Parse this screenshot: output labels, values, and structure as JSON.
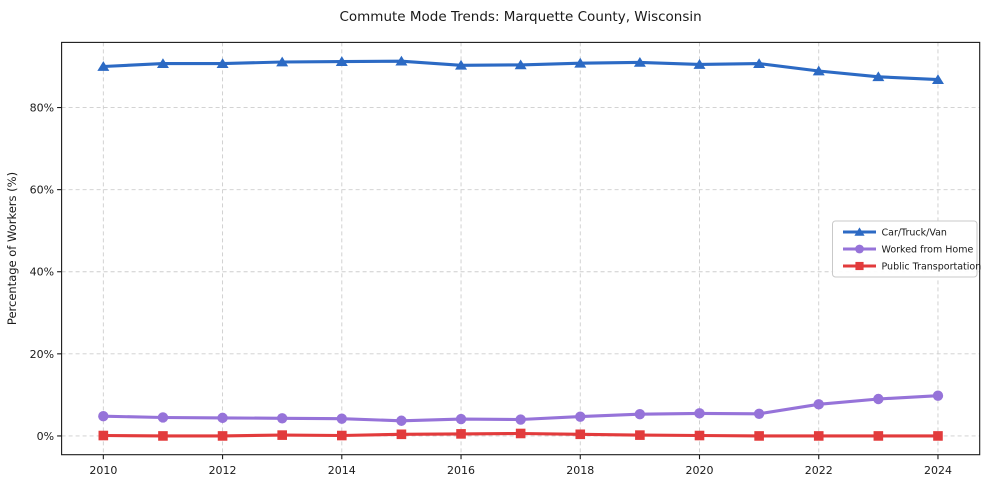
{
  "chart_data": {
    "type": "line",
    "title": "Commute Mode Trends: Marquette County, Wisconsin",
    "xlabel": "",
    "ylabel": "Percentage of Workers (%)",
    "x": [
      2010,
      2011,
      2012,
      2013,
      2014,
      2015,
      2016,
      2017,
      2018,
      2019,
      2020,
      2021,
      2022,
      2023,
      2024
    ],
    "series": [
      {
        "name": "Car/Truck/Van",
        "color": "#2c6ac4",
        "marker": "triangle-up",
        "values": [
          90.0,
          90.7,
          90.7,
          91.1,
          91.2,
          91.3,
          90.3,
          90.4,
          90.8,
          91.0,
          90.5,
          90.7,
          88.9,
          87.5,
          86.8
        ]
      },
      {
        "name": "Worked from Home",
        "color": "#9673d9",
        "marker": "circle",
        "values": [
          4.8,
          4.5,
          4.4,
          4.3,
          4.2,
          3.7,
          4.1,
          4.0,
          4.7,
          5.3,
          5.5,
          5.4,
          7.7,
          9.0,
          9.8
        ]
      },
      {
        "name": "Public Transportation",
        "color": "#e23b3c",
        "marker": "square",
        "values": [
          0.1,
          0.0,
          0.0,
          0.2,
          0.1,
          0.4,
          0.5,
          0.6,
          0.4,
          0.2,
          0.1,
          0.0,
          0.0,
          0.0,
          0.0
        ]
      }
    ],
    "xticks": [
      2010,
      2012,
      2014,
      2016,
      2018,
      2020,
      2022,
      2024
    ],
    "xtick_labels": [
      "2010",
      "2012",
      "2014",
      "2016",
      "2018",
      "2020",
      "2022",
      "2024"
    ],
    "yticks": [
      0,
      20,
      40,
      60,
      80
    ],
    "ytick_labels": [
      "0%",
      "20%",
      "40%",
      "60%",
      "80%"
    ],
    "xlim": [
      2009.3,
      2024.7
    ],
    "ylim": [
      -4.57,
      95.87
    ],
    "grid": true,
    "grid_style": "dashed",
    "legend_position": "center right",
    "colors": {
      "grid": "#cdcdcd",
      "spine": "#1a1a1a",
      "text": "#1a1a1a",
      "legend_border": "#c9c9c9",
      "background": "#ffffff"
    }
  }
}
